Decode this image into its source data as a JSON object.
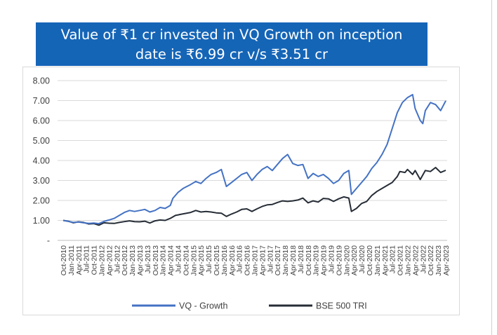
{
  "chart_data": {
    "type": "line",
    "title_lines": [
      "Value of ₹1 cr invested in VQ Growth on inception",
      "date is ₹6.99 cr v/s ₹3.51 cr"
    ],
    "ylim": [
      0,
      8
    ],
    "yticks": [
      {
        "value": 0,
        "label": "-"
      },
      {
        "value": 1,
        "label": "1.00"
      },
      {
        "value": 2,
        "label": "2.00"
      },
      {
        "value": 3,
        "label": "3.00"
      },
      {
        "value": 4,
        "label": "4.00"
      },
      {
        "value": 5,
        "label": "5.00"
      },
      {
        "value": 6,
        "label": "6.00"
      },
      {
        "value": 7,
        "label": "7.00"
      },
      {
        "value": 8,
        "label": "8.00"
      }
    ],
    "grid": true,
    "legend": "bottom",
    "x_labels": [
      "Oct-2010",
      "Jan-2011",
      "Apr-2011",
      "Jul-2011",
      "Oct-2011",
      "Jan-2012",
      "Apr-2012",
      "Jul-2012",
      "Oct-2012",
      "Jan-2013",
      "Apr-2013",
      "Jul-2013",
      "Oct-2013",
      "Jan-2014",
      "Apr-2014",
      "Jul-2014",
      "Oct-2014",
      "Jan-2015",
      "Apr-2015",
      "Jul-2015",
      "Oct-2015",
      "Jan-2016",
      "Apr-2016",
      "Jul-2016",
      "Oct-2016",
      "Jan-2017",
      "Apr-2017",
      "Jul-2017",
      "Oct-2017",
      "Jan-2018",
      "Apr-2018",
      "Jul-2018",
      "Oct-2018",
      "Jan-2019",
      "Apr-2019",
      "Jul-2019",
      "Oct-2019",
      "Jan-2020",
      "Apr-2020",
      "Jul-2020",
      "Oct-2020",
      "Jan-2021",
      "Apr-2021",
      "Jul-2021",
      "Oct-2021",
      "Jan-2022",
      "Apr-2022",
      "Jul-2022",
      "Oct-2022",
      "Jan-2023",
      "Apr-2023"
    ],
    "series": [
      {
        "name": "VQ - Growth",
        "color": "#4472c4",
        "points": [
          [
            "Oct-2010",
            1.0
          ],
          [
            "Dec-2010",
            0.95
          ],
          [
            "Feb-2011",
            0.9
          ],
          [
            "Apr-2011",
            0.92
          ],
          [
            "Jun-2011",
            0.88
          ],
          [
            "Aug-2011",
            0.85
          ],
          [
            "Oct-2011",
            0.87
          ],
          [
            "Dec-2011",
            0.84
          ],
          [
            "Feb-2012",
            0.95
          ],
          [
            "Apr-2012",
            1.02
          ],
          [
            "Jun-2012",
            1.1
          ],
          [
            "Aug-2012",
            1.25
          ],
          [
            "Oct-2012",
            1.4
          ],
          [
            "Dec-2012",
            1.5
          ],
          [
            "Feb-2013",
            1.45
          ],
          [
            "Apr-2013",
            1.5
          ],
          [
            "Jun-2013",
            1.55
          ],
          [
            "Aug-2013",
            1.42
          ],
          [
            "Oct-2013",
            1.5
          ],
          [
            "Dec-2013",
            1.65
          ],
          [
            "Feb-2014",
            1.6
          ],
          [
            "Apr-2014",
            1.75
          ],
          [
            "May-2014",
            2.1
          ],
          [
            "Jul-2014",
            2.4
          ],
          [
            "Sep-2014",
            2.6
          ],
          [
            "Dec-2014",
            2.8
          ],
          [
            "Feb-2015",
            2.95
          ],
          [
            "Apr-2015",
            2.85
          ],
          [
            "Jun-2015",
            3.1
          ],
          [
            "Aug-2015",
            3.3
          ],
          [
            "Oct-2015",
            3.4
          ],
          [
            "Dec-2015",
            3.55
          ],
          [
            "Feb-2016",
            2.7
          ],
          [
            "Apr-2016",
            2.9
          ],
          [
            "Jun-2016",
            3.1
          ],
          [
            "Aug-2016",
            3.3
          ],
          [
            "Oct-2016",
            3.4
          ],
          [
            "Dec-2016",
            3.0
          ],
          [
            "Feb-2017",
            3.3
          ],
          [
            "Apr-2017",
            3.55
          ],
          [
            "Jun-2017",
            3.7
          ],
          [
            "Aug-2017",
            3.5
          ],
          [
            "Oct-2017",
            3.8
          ],
          [
            "Dec-2017",
            4.1
          ],
          [
            "Feb-2018",
            4.3
          ],
          [
            "Apr-2018",
            3.85
          ],
          [
            "Jun-2018",
            3.75
          ],
          [
            "Aug-2018",
            3.8
          ],
          [
            "Oct-2018",
            3.1
          ],
          [
            "Dec-2018",
            3.35
          ],
          [
            "Feb-2019",
            3.2
          ],
          [
            "Apr-2019",
            3.3
          ],
          [
            "Jun-2019",
            3.1
          ],
          [
            "Aug-2019",
            2.85
          ],
          [
            "Oct-2019",
            3.0
          ],
          [
            "Dec-2019",
            3.35
          ],
          [
            "Feb-2020",
            3.5
          ],
          [
            "Mar-2020",
            2.3
          ],
          [
            "May-2020",
            2.6
          ],
          [
            "Jul-2020",
            2.9
          ],
          [
            "Sep-2020",
            3.2
          ],
          [
            "Nov-2020",
            3.6
          ],
          [
            "Jan-2021",
            3.9
          ],
          [
            "Mar-2021",
            4.3
          ],
          [
            "May-2021",
            4.8
          ],
          [
            "Jul-2021",
            5.6
          ],
          [
            "Sep-2021",
            6.4
          ],
          [
            "Nov-2021",
            6.9
          ],
          [
            "Jan-2022",
            7.15
          ],
          [
            "Mar-2022",
            7.3
          ],
          [
            "Apr-2022",
            6.6
          ],
          [
            "Jun-2022",
            6.0
          ],
          [
            "Jul-2022",
            5.85
          ],
          [
            "Aug-2022",
            6.5
          ],
          [
            "Oct-2022",
            6.9
          ],
          [
            "Dec-2022",
            6.8
          ],
          [
            "Feb-2023",
            6.5
          ],
          [
            "Apr-2023",
            6.99
          ]
        ]
      },
      {
        "name": "BSE 500 TRI",
        "color": "#262d36",
        "points": [
          [
            "Oct-2010",
            1.0
          ],
          [
            "Dec-2010",
            0.96
          ],
          [
            "Feb-2011",
            0.88
          ],
          [
            "Apr-2011",
            0.93
          ],
          [
            "Jun-2011",
            0.9
          ],
          [
            "Aug-2011",
            0.82
          ],
          [
            "Oct-2011",
            0.84
          ],
          [
            "Dec-2011",
            0.76
          ],
          [
            "Feb-2012",
            0.88
          ],
          [
            "Apr-2012",
            0.86
          ],
          [
            "Jun-2012",
            0.85
          ],
          [
            "Aug-2012",
            0.9
          ],
          [
            "Oct-2012",
            0.94
          ],
          [
            "Dec-2012",
            0.98
          ],
          [
            "Feb-2013",
            0.94
          ],
          [
            "Apr-2013",
            0.93
          ],
          [
            "Jun-2013",
            0.96
          ],
          [
            "Aug-2013",
            0.87
          ],
          [
            "Oct-2013",
            0.98
          ],
          [
            "Dec-2013",
            1.02
          ],
          [
            "Feb-2014",
            1.0
          ],
          [
            "Apr-2014",
            1.1
          ],
          [
            "Jun-2014",
            1.25
          ],
          [
            "Aug-2014",
            1.3
          ],
          [
            "Oct-2014",
            1.35
          ],
          [
            "Dec-2014",
            1.4
          ],
          [
            "Feb-2015",
            1.5
          ],
          [
            "Apr-2015",
            1.42
          ],
          [
            "Jun-2015",
            1.45
          ],
          [
            "Aug-2015",
            1.42
          ],
          [
            "Oct-2015",
            1.38
          ],
          [
            "Dec-2015",
            1.36
          ],
          [
            "Feb-2016",
            1.2
          ],
          [
            "Apr-2016",
            1.32
          ],
          [
            "Jun-2016",
            1.42
          ],
          [
            "Aug-2016",
            1.55
          ],
          [
            "Oct-2016",
            1.58
          ],
          [
            "Dec-2016",
            1.45
          ],
          [
            "Feb-2017",
            1.58
          ],
          [
            "Apr-2017",
            1.7
          ],
          [
            "Jun-2017",
            1.78
          ],
          [
            "Aug-2017",
            1.8
          ],
          [
            "Oct-2017",
            1.9
          ],
          [
            "Dec-2017",
            1.98
          ],
          [
            "Feb-2018",
            1.95
          ],
          [
            "Apr-2018",
            1.98
          ],
          [
            "Jun-2018",
            2.02
          ],
          [
            "Aug-2018",
            2.12
          ],
          [
            "Oct-2018",
            1.88
          ],
          [
            "Dec-2018",
            1.98
          ],
          [
            "Feb-2019",
            1.92
          ],
          [
            "Apr-2019",
            2.1
          ],
          [
            "Jun-2019",
            2.08
          ],
          [
            "Aug-2019",
            1.95
          ],
          [
            "Oct-2019",
            2.08
          ],
          [
            "Dec-2019",
            2.18
          ],
          [
            "Feb-2020",
            2.12
          ],
          [
            "Mar-2020",
            1.45
          ],
          [
            "May-2020",
            1.6
          ],
          [
            "Jul-2020",
            1.85
          ],
          [
            "Sep-2020",
            1.95
          ],
          [
            "Nov-2020",
            2.25
          ],
          [
            "Jan-2021",
            2.45
          ],
          [
            "Mar-2021",
            2.6
          ],
          [
            "May-2021",
            2.75
          ],
          [
            "Jul-2021",
            2.9
          ],
          [
            "Sep-2021",
            3.2
          ],
          [
            "Oct-2021",
            3.45
          ],
          [
            "Dec-2021",
            3.4
          ],
          [
            "Jan-2022",
            3.55
          ],
          [
            "Mar-2022",
            3.3
          ],
          [
            "Apr-2022",
            3.5
          ],
          [
            "Jun-2022",
            3.05
          ],
          [
            "Aug-2022",
            3.5
          ],
          [
            "Oct-2022",
            3.45
          ],
          [
            "Dec-2022",
            3.65
          ],
          [
            "Feb-2023",
            3.4
          ],
          [
            "Apr-2023",
            3.51
          ]
        ]
      }
    ]
  }
}
